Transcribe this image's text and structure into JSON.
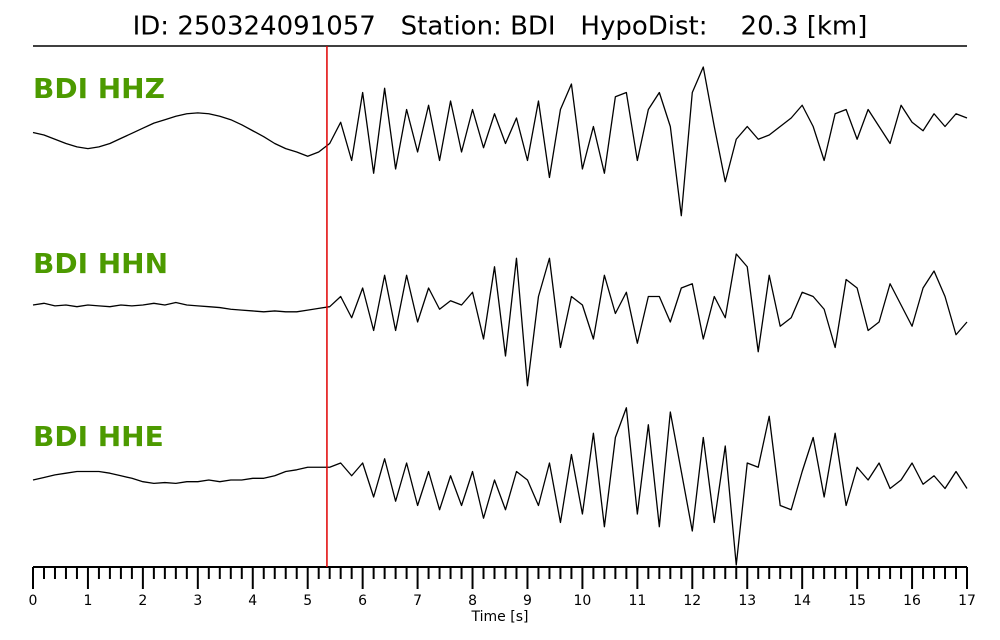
{
  "chart_data": {
    "type": "line",
    "title": "ID: 250324091057   Station: BDI   HypoDist:    20.3 [km]",
    "xlabel": "Time [s]",
    "xlim": [
      0,
      17
    ],
    "xticks": [
      0,
      1,
      2,
      3,
      4,
      5,
      6,
      7,
      8,
      9,
      10,
      11,
      12,
      13,
      14,
      15,
      16,
      17
    ],
    "minor_ticks": 5,
    "ylim": [
      -1,
      1
    ],
    "pick_time": 5.35,
    "pick_color": "#e00000",
    "x": [
      0,
      0.2,
      0.4,
      0.6,
      0.8,
      1,
      1.2,
      1.4,
      1.6,
      1.8,
      2,
      2.2,
      2.4,
      2.6,
      2.8,
      3,
      3.2,
      3.4,
      3.6,
      3.8,
      4,
      4.2,
      4.4,
      4.6,
      4.8,
      5,
      5.2,
      5.4,
      5.6,
      5.8,
      6,
      6.2,
      6.4,
      6.6,
      6.8,
      7,
      7.2,
      7.4,
      7.6,
      7.8,
      8,
      8.2,
      8.4,
      8.6,
      8.8,
      9,
      9.2,
      9.4,
      9.6,
      9.8,
      10,
      10.2,
      10.4,
      10.6,
      10.8,
      11,
      11.2,
      11.4,
      11.6,
      11.8,
      12,
      12.2,
      12.4,
      12.6,
      12.8,
      13,
      13.2,
      13.4,
      13.6,
      13.8,
      14,
      14.2,
      14.4,
      14.6,
      14.8,
      15,
      15.2,
      15.4,
      15.6,
      15.8,
      16,
      16.2,
      16.4,
      16.6,
      16.8,
      17
    ],
    "series": [
      {
        "name": "BDI HHZ",
        "color": "#000000",
        "values": [
          0.03,
          0,
          -0.05,
          -0.1,
          -0.14,
          -0.16,
          -0.14,
          -0.1,
          -0.04,
          0.02,
          0.08,
          0.14,
          0.18,
          0.22,
          0.25,
          0.26,
          0.25,
          0.22,
          0.18,
          0.12,
          0.05,
          -0.02,
          -0.1,
          -0.16,
          -0.2,
          -0.25,
          -0.2,
          -0.1,
          0.15,
          -0.3,
          0.5,
          -0.45,
          0.55,
          -0.4,
          0.3,
          -0.2,
          0.35,
          -0.3,
          0.4,
          -0.2,
          0.3,
          -0.15,
          0.25,
          -0.1,
          0.2,
          -0.3,
          0.4,
          -0.5,
          0.3,
          0.6,
          -0.4,
          0.1,
          -0.45,
          0.45,
          0.5,
          -0.3,
          0.3,
          0.5,
          0.1,
          -0.95,
          0.5,
          0.8,
          0.1,
          -0.55,
          -0.05,
          0.1,
          -0.05,
          0,
          0.1,
          0.2,
          0.35,
          0.1,
          -0.3,
          0.25,
          0.3,
          -0.05,
          0.3,
          0.1,
          -0.1,
          0.35,
          0.15,
          0.05,
          0.25,
          0.1,
          0.25,
          0.2
        ]
      },
      {
        "name": "BDI HHN",
        "color": "#000000",
        "values": [
          0,
          0.02,
          -0.01,
          0,
          -0.02,
          0,
          -0.01,
          -0.02,
          0,
          -0.01,
          0,
          0.02,
          0,
          0.03,
          0,
          -0.01,
          -0.02,
          -0.03,
          -0.05,
          -0.06,
          -0.07,
          -0.08,
          -0.07,
          -0.08,
          -0.08,
          -0.06,
          -0.04,
          -0.02,
          0.1,
          -0.15,
          0.2,
          -0.3,
          0.35,
          -0.3,
          0.35,
          -0.2,
          0.2,
          -0.05,
          0.05,
          0,
          0.15,
          -0.4,
          0.45,
          -0.6,
          0.55,
          -0.95,
          0.1,
          0.55,
          -0.5,
          0.1,
          0,
          -0.4,
          0.35,
          -0.1,
          0.15,
          -0.45,
          0.1,
          0.1,
          -0.2,
          0.2,
          0.25,
          -0.4,
          0.1,
          -0.15,
          0.6,
          0.45,
          -0.55,
          0.35,
          -0.25,
          -0.15,
          0.15,
          0.1,
          -0.05,
          -0.5,
          0.3,
          0.2,
          -0.3,
          -0.2,
          0.25,
          0,
          -0.25,
          0.2,
          0.4,
          0.1,
          -0.35,
          -0.2
        ]
      },
      {
        "name": "BDI HHE",
        "color": "#000000",
        "values": [
          0,
          0.03,
          0.06,
          0.08,
          0.1,
          0.1,
          0.1,
          0.08,
          0.05,
          0.02,
          -0.02,
          -0.04,
          -0.03,
          -0.04,
          -0.02,
          -0.02,
          0,
          -0.02,
          0,
          0,
          0.02,
          0.02,
          0.05,
          0.1,
          0.12,
          0.15,
          0.15,
          0.15,
          0.2,
          0.05,
          0.2,
          -0.2,
          0.25,
          -0.25,
          0.2,
          -0.3,
          0.1,
          -0.35,
          0.05,
          -0.3,
          0.1,
          -0.45,
          0,
          -0.35,
          0.1,
          0,
          -0.3,
          0.2,
          -0.5,
          0.3,
          -0.4,
          0.55,
          -0.55,
          0.5,
          0.85,
          -0.4,
          0.65,
          -0.55,
          0.8,
          0.1,
          -0.6,
          0.5,
          -0.5,
          0.4,
          -1,
          0.2,
          0.15,
          0.75,
          -0.3,
          -0.35,
          0.1,
          0.5,
          -0.2,
          0.55,
          -0.3,
          0.15,
          0,
          0.2,
          -0.1,
          0,
          0.2,
          -0.05,
          0.05,
          -0.1,
          0.1,
          -0.1
        ]
      }
    ]
  }
}
